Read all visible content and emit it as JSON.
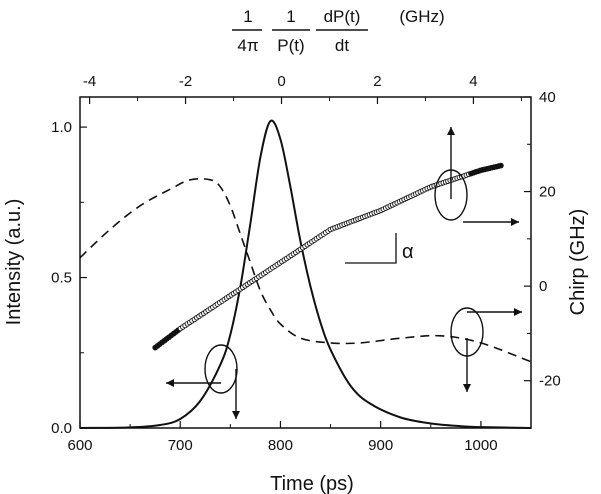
{
  "chart_data": {
    "type": "line",
    "x": {
      "label": "Time (ps)",
      "range": [
        600,
        1050
      ],
      "ticks": [
        600,
        700,
        800,
        900,
        1000
      ],
      "tick_labels": [
        "600",
        "700",
        "800",
        "900",
        "1000"
      ]
    },
    "x_top": {
      "label_parts": {
        "num1": "1",
        "den1": "4π",
        "num2": "1",
        "den2": "P(t)",
        "num3": "dP(t)",
        "den3": "dt",
        "unit": "(GHz)"
      },
      "range": [
        -4.2,
        5.2
      ],
      "ticks": [
        -4,
        -2,
        0,
        2,
        4
      ],
      "tick_labels": [
        "-4",
        "-2",
        "0",
        "2",
        "4"
      ]
    },
    "y_left": {
      "label": "Intensity (a.u.)",
      "range": [
        0,
        1.1
      ],
      "ticks": [
        0,
        0.5,
        1.0
      ],
      "tick_labels": [
        "0.0",
        "0.5",
        "1.0"
      ]
    },
    "y_right": {
      "label": "Chirp (GHz)",
      "range": [
        -30,
        40
      ],
      "ticks": [
        -20,
        0,
        20,
        40
      ],
      "tick_labels": [
        "-20",
        "0",
        "20",
        "40"
      ]
    },
    "annotation": "α",
    "series": [
      {
        "style": "solid",
        "axes": "bottom-left",
        "x": [
          600,
          650,
          680,
          700,
          720,
          740,
          750,
          760,
          770,
          780,
          790,
          800,
          810,
          820,
          830,
          840,
          850,
          870,
          890,
          920,
          950,
          980,
          1000,
          1050
        ],
        "y": [
          0,
          0.002,
          0.01,
          0.03,
          0.09,
          0.21,
          0.31,
          0.47,
          0.68,
          0.9,
          1.02,
          0.96,
          0.8,
          0.62,
          0.47,
          0.35,
          0.26,
          0.14,
          0.08,
          0.035,
          0.015,
          0.006,
          0.003,
          0
        ]
      },
      {
        "style": "dashed",
        "axes": "bottom-right",
        "x": [
          600,
          630,
          660,
          690,
          710,
          730,
          740,
          750,
          760,
          770,
          780,
          790,
          800,
          820,
          850,
          880,
          920,
          960,
          1000,
          1050
        ],
        "y": [
          6,
          12,
          17,
          20.5,
          22.5,
          22.5,
          21,
          17,
          11,
          5,
          -1,
          -5,
          -8,
          -11,
          -12,
          -12,
          -11,
          -10.5,
          -12,
          -16
        ]
      },
      {
        "style": "circles",
        "axes": "bottom-right",
        "x": [
          675,
          700,
          750,
          800,
          850,
          900,
          950,
          1000,
          1020
        ],
        "y": [
          -13,
          -9,
          -2,
          5,
          12,
          16,
          21,
          24.5,
          25.5
        ]
      }
    ],
    "grid": false,
    "legend": "none"
  }
}
